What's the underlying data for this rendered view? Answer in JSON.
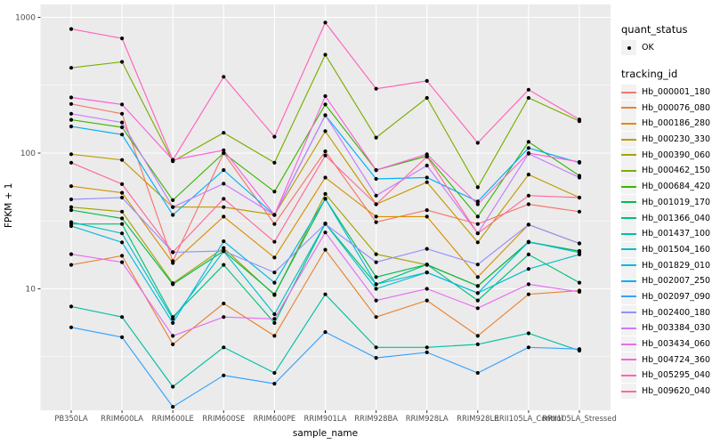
{
  "figure": {
    "background": "#FFFFFF",
    "panel_background": "#EBEBEB",
    "grid_color": "#FFFFFF",
    "tick_text_color": "#4D4D4D",
    "point_color": "#000000"
  },
  "legend": {
    "quant_status": {
      "title": "quant_status",
      "items": [
        {
          "label": "OK",
          "symbol": "black-point"
        }
      ]
    },
    "tracking": {
      "title": "tracking_id"
    }
  },
  "chart_data": {
    "type": "line",
    "title": "",
    "xlabel": "sample_name",
    "ylabel": "FPKM + 1",
    "y_scale": "log10",
    "y_ticks": [
      10,
      100,
      1000
    ],
    "y_minor_ticks": [
      3.162,
      31.62,
      316.2
    ],
    "ylim": [
      1.25,
      1250
    ],
    "grid": true,
    "legend_position": "right",
    "point_shape": "filled-circle-black",
    "categories": [
      "PB350LA",
      "RRIM600LA",
      "RRIM600LE",
      "RRIM600SE",
      "RRIM600PE",
      "RRIM901LA",
      "RRIM928BA",
      "RRIM928LA",
      "RRIM928LE",
      "RRII105LA_Control",
      "RRII105LA_Stressed"
    ],
    "series": [
      {
        "name": "Hb_000001_180",
        "color": "#F8766D",
        "values": [
          230,
          195,
          16,
          100,
          30,
          103,
          31,
          38,
          30,
          42,
          37
        ]
      },
      {
        "name": "Hb_000076_080",
        "color": "#EA8331",
        "values": [
          15,
          17.5,
          3.9,
          7.8,
          4.5,
          19.4,
          6.2,
          8.2,
          4.5,
          9.1,
          9.7
        ]
      },
      {
        "name": "Hb_000186_280",
        "color": "#D89000",
        "values": [
          57,
          51,
          15.5,
          34,
          17,
          66,
          34,
          34,
          12.2,
          29.7,
          21.6
        ]
      },
      {
        "name": "Hb_000230_330",
        "color": "#C09B00",
        "values": [
          98,
          89,
          40,
          40,
          35,
          145,
          42,
          61,
          22,
          69.5,
          47
        ]
      },
      {
        "name": "Hb_000390_060",
        "color": "#A3A500",
        "values": [
          40,
          37,
          11,
          20,
          9,
          50,
          18,
          15,
          10.5,
          22,
          19
        ]
      },
      {
        "name": "Hb_000462_150",
        "color": "#7CAE00",
        "values": [
          425,
          470,
          87,
          141,
          85,
          530,
          130,
          255,
          56,
          255,
          172
        ]
      },
      {
        "name": "Hb_000684_420",
        "color": "#39B600",
        "values": [
          176,
          155,
          45,
          100,
          52,
          228,
          75,
          95,
          34,
          121,
          68
        ]
      },
      {
        "name": "Hb_001019_170",
        "color": "#00BB4E",
        "values": [
          38,
          33,
          10.8,
          19,
          9.1,
          46,
          12.2,
          15.1,
          10.5,
          22.2,
          18.9
        ]
      },
      {
        "name": "Hb_001366_040",
        "color": "#00BF7D",
        "values": [
          30,
          30,
          6.2,
          15,
          5.6,
          30.3,
          10.8,
          15.1,
          8.2,
          17.9,
          11.1
        ]
      },
      {
        "name": "Hb_001437_100",
        "color": "#00C1A3",
        "values": [
          7.4,
          6.2,
          1.9,
          3.7,
          2.4,
          9.1,
          3.7,
          3.7,
          3.9,
          4.7,
          3.5
        ]
      },
      {
        "name": "Hb_001504_160",
        "color": "#00BFC4",
        "values": [
          31,
          25.6,
          6.0,
          18.9,
          6.5,
          30.3,
          10.0,
          13.2,
          9.3,
          14.0,
          17.9
        ]
      },
      {
        "name": "Hb_001829_010",
        "color": "#00BAE0",
        "values": [
          29,
          22,
          5.6,
          22.4,
          11.1,
          46,
          10.8,
          13.2,
          9.3,
          22.2,
          18.5
        ]
      },
      {
        "name": "Hb_002007_250",
        "color": "#00B0F6",
        "values": [
          157,
          137,
          35,
          75,
          35,
          190,
          64.5,
          66,
          44,
          109,
          85
        ]
      },
      {
        "name": "Hb_002097_090",
        "color": "#35A2FF",
        "values": [
          5.2,
          4.4,
          1.35,
          2.3,
          2.0,
          4.8,
          3.1,
          3.4,
          2.4,
          3.7,
          3.6
        ]
      },
      {
        "name": "Hb_002400_180",
        "color": "#9590FF",
        "values": [
          45.6,
          47,
          18.6,
          19,
          13.2,
          30,
          15.7,
          19.7,
          15.1,
          29.7,
          21.6
        ]
      },
      {
        "name": "Hb_003384_030",
        "color": "#C77CFF",
        "values": [
          195,
          168,
          40,
          59.5,
          35,
          190,
          48.6,
          81,
          25.6,
          99,
          66
        ]
      },
      {
        "name": "Hb_003434_060",
        "color": "#E76BF3",
        "values": [
          18,
          15.7,
          4.5,
          6.2,
          6.0,
          26,
          8.2,
          10.0,
          7.2,
          10.8,
          9.5
        ]
      },
      {
        "name": "Hb_004724_360",
        "color": "#FA62DB",
        "values": [
          257,
          228,
          89,
          105,
          35,
          263,
          75,
          98,
          42,
          100,
          86
        ]
      },
      {
        "name": "Hb_005295_040",
        "color": "#FF62BC",
        "values": [
          820,
          700,
          89,
          365,
          132,
          915,
          298,
          340,
          119,
          293,
          177
        ]
      },
      {
        "name": "Hb_009620_040",
        "color": "#FF6A98",
        "values": [
          85,
          59,
          18.6,
          46,
          22.2,
          96,
          42,
          94,
          25.6,
          48.6,
          47
        ]
      }
    ]
  }
}
